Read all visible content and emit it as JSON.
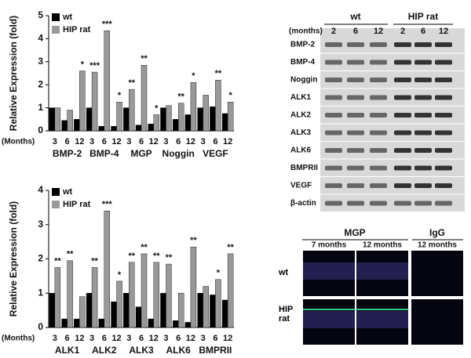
{
  "chart_data": [
    {
      "type": "bar",
      "y_label": "Relative Expression (fold)",
      "months_label": "(Months)",
      "groups": [
        "BMP-2",
        "BMP-4",
        "MGP",
        "Noggin",
        "VEGF"
      ],
      "months": [
        "3",
        "6",
        "12"
      ],
      "ylim": [
        0,
        5
      ],
      "yticks": [
        0,
        1,
        2,
        3,
        4,
        5
      ],
      "series": [
        {
          "name": "wt",
          "color": "#000000",
          "values": [
            1.0,
            0.45,
            0.5,
            1.0,
            0.2,
            0.2,
            1.0,
            0.25,
            0.3,
            1.0,
            0.5,
            0.7,
            1.0,
            1.05,
            0.75
          ]
        },
        {
          "name": "HIP rat",
          "color": "#999999",
          "values": [
            1.0,
            0.9,
            2.6,
            2.55,
            4.35,
            1.25,
            1.8,
            2.85,
            0.7,
            1.1,
            1.2,
            2.1,
            1.55,
            2.2,
            1.25
          ]
        }
      ],
      "annotations": [
        null,
        null,
        "*",
        "***",
        "***",
        "*",
        "**",
        "**",
        "*",
        null,
        "**",
        "*",
        null,
        "**",
        "*"
      ]
    },
    {
      "type": "bar",
      "y_label": "Relative Expression (fold)",
      "months_label": "(Months)",
      "groups": [
        "ALK1",
        "ALK2",
        "ALK3",
        "ALK6",
        "BMPRII"
      ],
      "months": [
        "3",
        "6",
        "12"
      ],
      "ylim": [
        0,
        4
      ],
      "yticks": [
        0,
        1,
        2,
        3,
        4
      ],
      "series": [
        {
          "name": "wt",
          "color": "#000000",
          "values": [
            1.0,
            0.25,
            0.25,
            1.0,
            0.25,
            0.75,
            1.0,
            0.6,
            0.25,
            1.0,
            0.2,
            0.15,
            1.0,
            0.95,
            0.8
          ]
        },
        {
          "name": "HIP rat",
          "color": "#999999",
          "values": [
            1.75,
            1.95,
            0.9,
            1.75,
            3.4,
            1.35,
            1.9,
            2.15,
            1.9,
            1.85,
            1.0,
            2.35,
            1.2,
            1.4,
            2.15
          ]
        }
      ],
      "annotations": [
        "**",
        "**",
        null,
        "**",
        "***",
        "*",
        "**",
        "**",
        "**",
        "**",
        null,
        "**",
        null,
        "*",
        "**"
      ]
    }
  ],
  "blot": {
    "months_label": "(months)",
    "groups": [
      "wt",
      "HIP rat"
    ],
    "lanes": [
      "2",
      "6",
      "12"
    ],
    "rows": [
      "BMP-2",
      "BMP-4",
      "Noggin",
      "ALK1",
      "ALK2",
      "ALK3",
      "ALK6",
      "BMPRII",
      "VEGF",
      "β-actin"
    ]
  },
  "histology": {
    "stains": [
      "MGP",
      "IgG"
    ],
    "columns": [
      "7 months",
      "12 months",
      "12 months"
    ],
    "rows": [
      "wt",
      "HIP rat"
    ]
  }
}
